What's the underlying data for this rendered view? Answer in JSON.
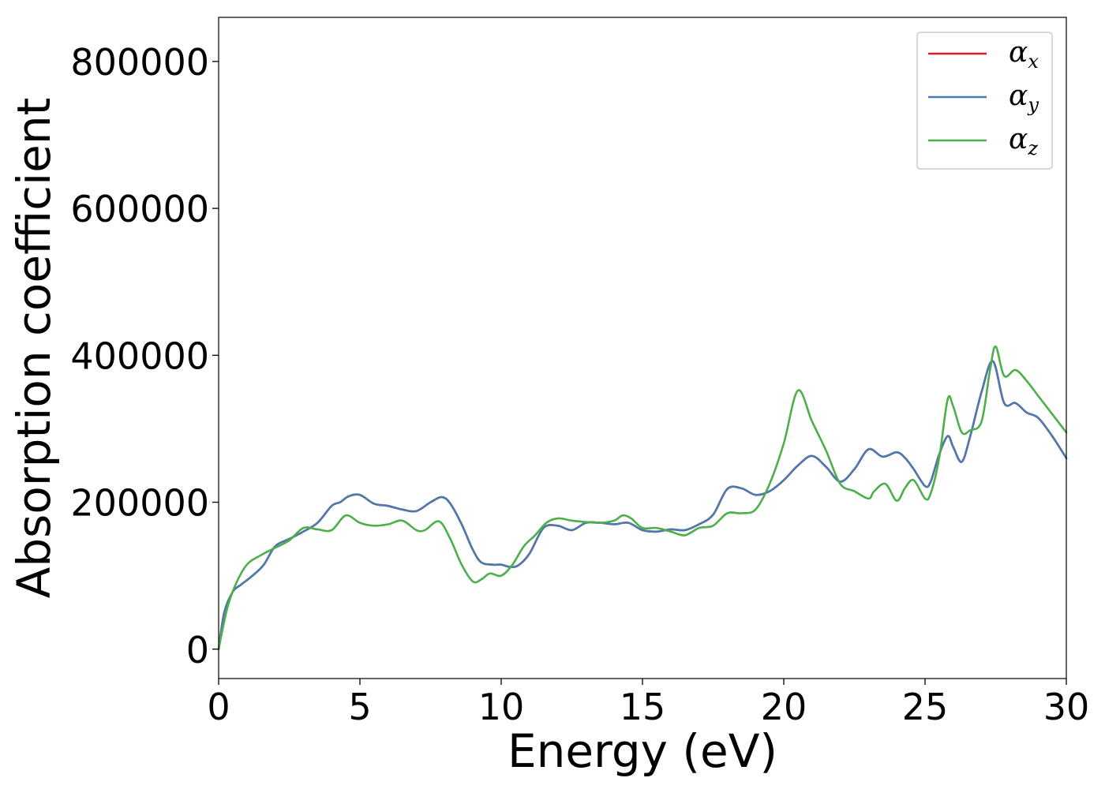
{
  "chart_data": {
    "type": "line",
    "title": "",
    "xlabel": "Energy (eV)",
    "ylabel": "Absorption coefficient",
    "xlim": [
      0,
      30
    ],
    "ylim": [
      -40000,
      860000
    ],
    "xticks": [
      0,
      5,
      10,
      15,
      20,
      25,
      30
    ],
    "yticks": [
      0,
      200000,
      400000,
      600000,
      800000
    ],
    "grid": false,
    "legend_position": "top-right",
    "series": [
      {
        "name": "α",
        "subscript": "x",
        "color": "#e41a1c",
        "x": [
          0,
          0.2,
          0.5,
          0.8,
          1.2,
          1.6,
          2,
          2.5,
          3,
          3.5,
          4,
          4.3,
          4.6,
          5,
          5.5,
          6,
          6.5,
          7,
          7.5,
          7.9,
          8.2,
          8.6,
          9,
          9.3,
          9.7,
          10,
          10.3,
          10.6,
          11,
          11.5,
          12,
          12.5,
          13,
          13.5,
          14,
          14.5,
          15,
          15.5,
          16,
          16.5,
          17,
          17.5,
          18,
          18.5,
          19,
          19.5,
          20,
          20.5,
          21,
          21.5,
          22,
          22.5,
          23,
          23.5,
          24,
          24.3,
          24.6,
          25,
          25.2,
          25.5,
          25.8,
          26,
          26.3,
          26.6,
          27,
          27.4,
          27.8,
          28.2,
          28.6,
          29,
          29.5,
          30
        ],
        "values": [
          0,
          50000,
          78000,
          88000,
          100000,
          115000,
          140000,
          150000,
          160000,
          172000,
          195000,
          200000,
          208000,
          210000,
          198000,
          195000,
          190000,
          188000,
          200000,
          207000,
          198000,
          170000,
          135000,
          118000,
          115000,
          115000,
          112000,
          114000,
          130000,
          165000,
          168000,
          162000,
          172000,
          172000,
          170000,
          172000,
          162000,
          160000,
          163000,
          162000,
          170000,
          183000,
          218000,
          219000,
          210000,
          215000,
          230000,
          250000,
          263000,
          248000,
          228000,
          245000,
          272000,
          262000,
          268000,
          260000,
          245000,
          222000,
          228000,
          265000,
          290000,
          275000,
          255000,
          290000,
          350000,
          392000,
          335000,
          335000,
          322000,
          315000,
          290000,
          260000
        ]
      },
      {
        "name": "α",
        "subscript": "y",
        "color": "#4a7ab0",
        "x": [
          0,
          0.2,
          0.5,
          0.8,
          1.2,
          1.6,
          2,
          2.5,
          3,
          3.5,
          4,
          4.3,
          4.6,
          5,
          5.5,
          6,
          6.5,
          7,
          7.5,
          7.9,
          8.2,
          8.6,
          9,
          9.3,
          9.7,
          10,
          10.3,
          10.6,
          11,
          11.5,
          12,
          12.5,
          13,
          13.5,
          14,
          14.5,
          15,
          15.5,
          16,
          16.5,
          17,
          17.5,
          18,
          18.5,
          19,
          19.5,
          20,
          20.5,
          21,
          21.5,
          22,
          22.5,
          23,
          23.5,
          24,
          24.3,
          24.6,
          25,
          25.2,
          25.5,
          25.8,
          26,
          26.3,
          26.6,
          27,
          27.4,
          27.8,
          28.2,
          28.6,
          29,
          29.5,
          30
        ],
        "values": [
          0,
          50000,
          78000,
          88000,
          100000,
          115000,
          140000,
          150000,
          160000,
          172000,
          195000,
          200000,
          208000,
          210000,
          198000,
          195000,
          190000,
          188000,
          200000,
          207000,
          198000,
          170000,
          135000,
          118000,
          115000,
          115000,
          112000,
          114000,
          130000,
          165000,
          168000,
          162000,
          172000,
          172000,
          170000,
          172000,
          162000,
          160000,
          163000,
          162000,
          170000,
          183000,
          218000,
          219000,
          210000,
          215000,
          230000,
          250000,
          263000,
          248000,
          228000,
          245000,
          272000,
          262000,
          268000,
          260000,
          245000,
          222000,
          228000,
          265000,
          290000,
          275000,
          255000,
          290000,
          350000,
          392000,
          335000,
          335000,
          322000,
          315000,
          290000,
          260000
        ]
      },
      {
        "name": "α",
        "subscript": "z",
        "color": "#4daf4a",
        "x": [
          0,
          0.3,
          0.6,
          1,
          1.5,
          2,
          2.5,
          3,
          3.5,
          4,
          4.5,
          5,
          5.5,
          6,
          6.5,
          7,
          7.3,
          7.8,
          8.2,
          8.6,
          9,
          9.3,
          9.6,
          10,
          10.4,
          10.8,
          11.2,
          11.6,
          12,
          12.5,
          13,
          13.5,
          14,
          14.3,
          14.6,
          15,
          15.5,
          16,
          16.5,
          17,
          17.5,
          18,
          18.5,
          19,
          19.5,
          20,
          20.5,
          21,
          21.5,
          22,
          22.5,
          23,
          23.2,
          23.6,
          24,
          24.3,
          24.6,
          25,
          25.2,
          25.5,
          25.8,
          26,
          26.3,
          26.6,
          27,
          27.3,
          27.5,
          27.8,
          28.2,
          28.6,
          29,
          29.5,
          30
        ],
        "values": [
          0,
          55000,
          88000,
          115000,
          128000,
          138000,
          148000,
          165000,
          163000,
          162000,
          182000,
          172000,
          168000,
          170000,
          175000,
          162000,
          162000,
          174000,
          150000,
          115000,
          92000,
          95000,
          103000,
          100000,
          115000,
          140000,
          155000,
          172000,
          178000,
          175000,
          173000,
          172000,
          175000,
          182000,
          178000,
          165000,
          165000,
          160000,
          155000,
          165000,
          168000,
          185000,
          185000,
          190000,
          225000,
          280000,
          352000,
          310000,
          270000,
          225000,
          215000,
          205000,
          215000,
          225000,
          202000,
          220000,
          230000,
          205000,
          212000,
          260000,
          340000,
          330000,
          295000,
          298000,
          310000,
          380000,
          412000,
          372000,
          380000,
          365000,
          345000,
          320000,
          295000
        ]
      }
    ]
  }
}
